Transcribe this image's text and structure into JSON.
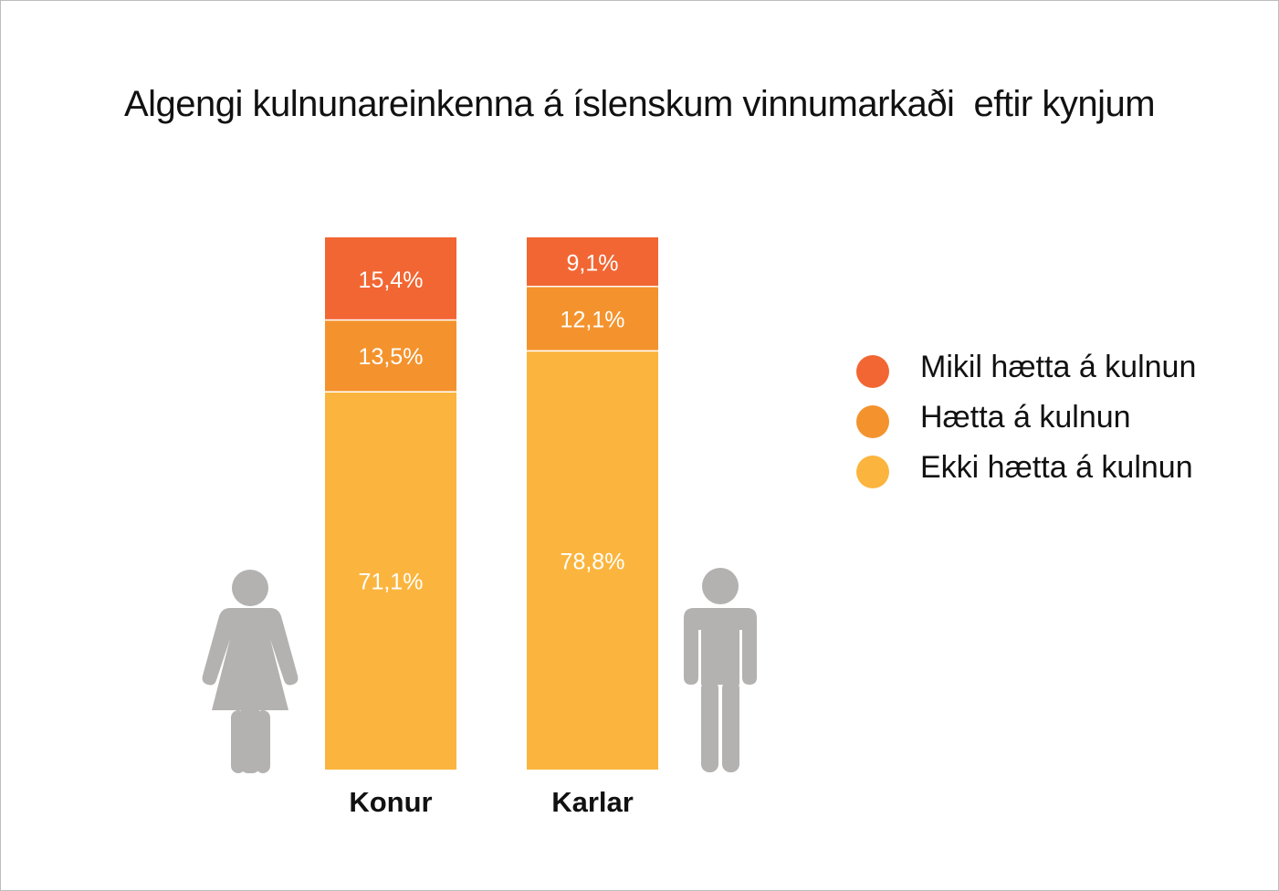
{
  "chart_data": {
    "type": "bar",
    "stacked": true,
    "normalized_to": 100,
    "title": "Algengi kulnunareinkenna á íslenskum vinnumarkaði  eftir kynjum",
    "xlabel": "",
    "ylabel": "",
    "categories": [
      "Konur",
      "Karlar"
    ],
    "series": [
      {
        "name": "Ekki hætta á kulnun",
        "values": [
          71.1,
          78.8
        ],
        "labels": [
          "71,1%",
          "78,8%"
        ],
        "color": "#fbb53e"
      },
      {
        "name": "Hætta á kulnun",
        "values": [
          13.5,
          12.1
        ],
        "labels": [
          "13,5%",
          "12,1%"
        ],
        "color": "#f4932d"
      },
      {
        "name": "Mikil hætta á kulnun",
        "values": [
          15.4,
          9.1
        ],
        "labels": [
          "15,4%",
          "9,1%"
        ],
        "color": "#f26633"
      }
    ],
    "legend": {
      "position": "right",
      "order": [
        "Mikil hætta á kulnun",
        "Hætta á kulnun",
        "Ekki hætta á kulnun"
      ]
    },
    "grid": false,
    "icons": [
      "woman-icon",
      "man-icon"
    ],
    "icon_color": "#b3b2b0"
  }
}
